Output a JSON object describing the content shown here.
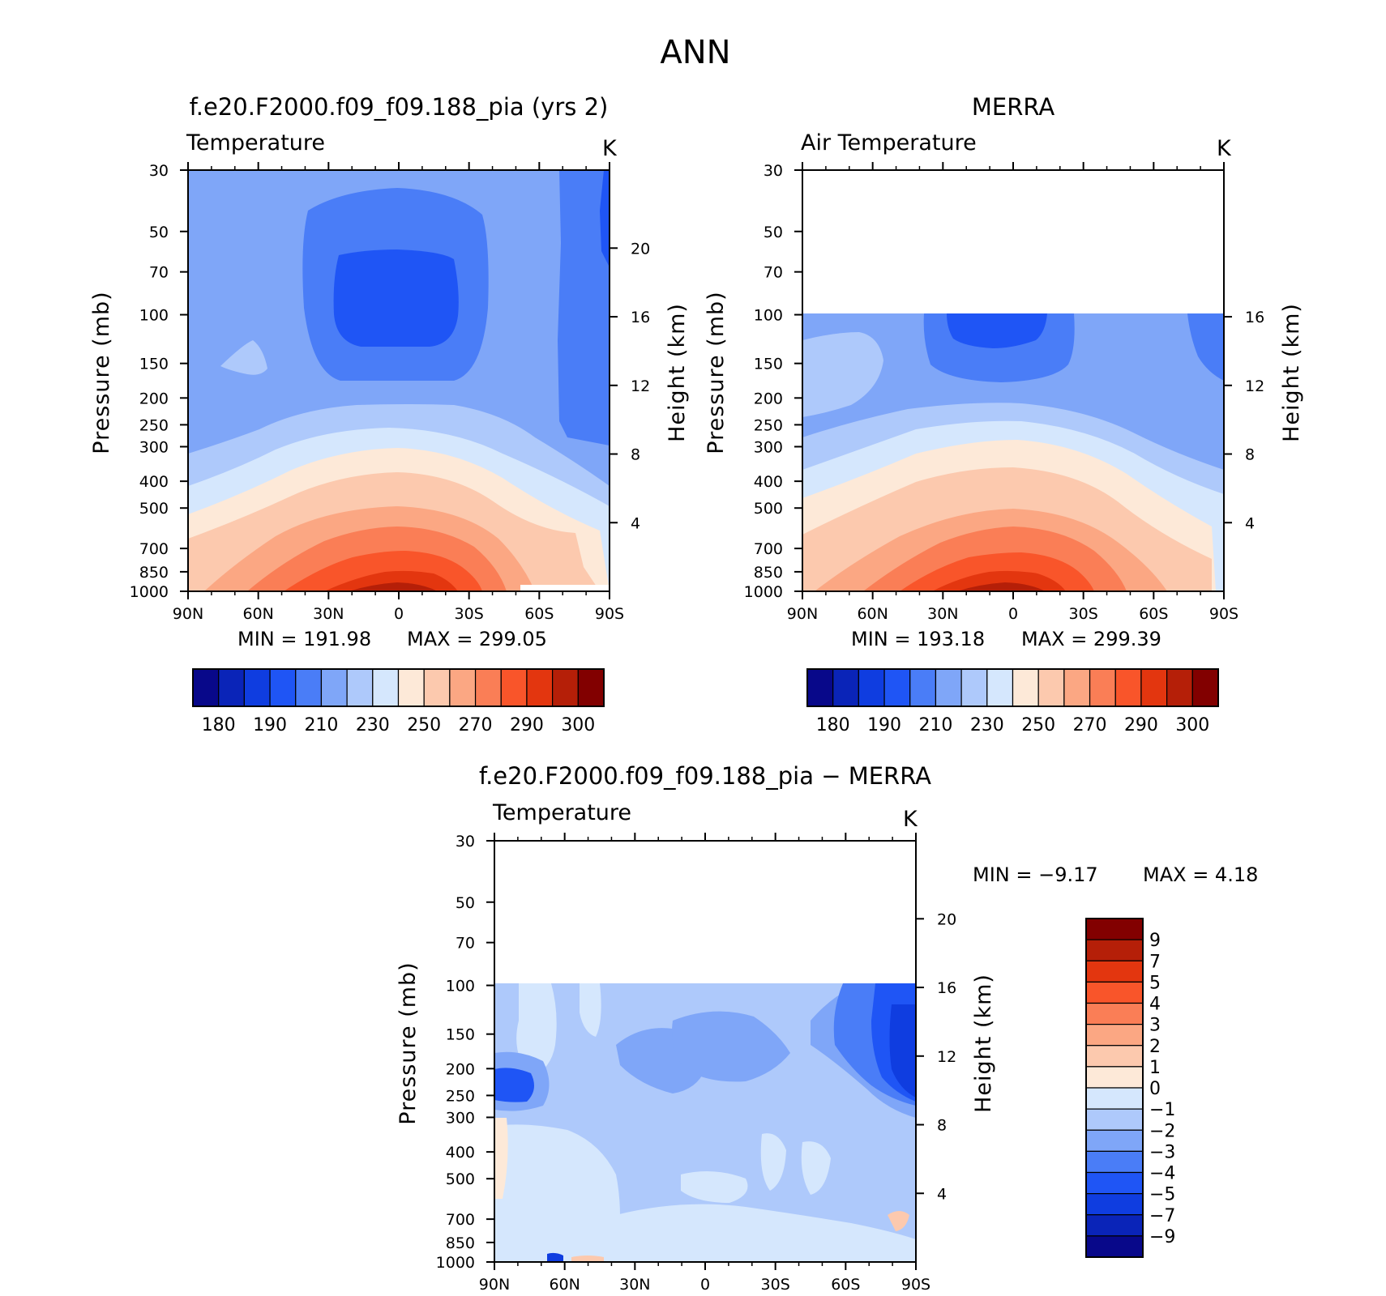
{
  "figure": {
    "title": "ANN"
  },
  "palette": {
    "full_colors": [
      "#08088a",
      "#0a24b8",
      "#0f3de0",
      "#1f55f5",
      "#4a7df7",
      "#7fa6f8",
      "#aec9fb",
      "#d5e7fd",
      "#fde9d8",
      "#fcc9ae",
      "#fba783",
      "#fa7e56",
      "#f9552a",
      "#e3360f",
      "#b51f08",
      "#820000"
    ],
    "full_labels": [
      "180",
      "190",
      "210",
      "230",
      "250",
      "270",
      "290",
      "300"
    ],
    "diff_colors_top_to_bottom": [
      "#820000",
      "#b51f08",
      "#e3360f",
      "#f9552a",
      "#fa7e56",
      "#fba783",
      "#fcc9ae",
      "#fde9d8",
      "#d5e7fd",
      "#aec9fb",
      "#7fa6f8",
      "#4a7df7",
      "#1f55f5",
      "#0f3de0",
      "#0a24b8",
      "#08088a"
    ],
    "diff_labels": [
      "9",
      "7",
      "5",
      "4",
      "3",
      "2",
      "1",
      "0",
      "−1",
      "−2",
      "−3",
      "−4",
      "−5",
      "−7",
      "−9"
    ]
  },
  "axes": {
    "lat_ticks": [
      "90N",
      "60N",
      "30N",
      "0",
      "30S",
      "60S",
      "90S"
    ],
    "pressure_ticks": [
      "30",
      "50",
      "70",
      "100",
      "150",
      "200",
      "250",
      "300",
      "400",
      "500",
      "700",
      "850",
      "1000"
    ],
    "pressure_label": "Pressure (mb)",
    "height_label": "Height (km)",
    "units": "K"
  },
  "chart_data": [
    {
      "type": "heatmap",
      "panel": "model",
      "title": "f.e20.F2000.f09_f09.188_pia (yrs 2)",
      "field_label": "Temperature",
      "units": "K",
      "x_ticks": [
        "90N",
        "60N",
        "30N",
        "0",
        "30S",
        "60S",
        "90S"
      ],
      "y_ticks_pressure": [
        30,
        50,
        70,
        100,
        150,
        200,
        250,
        300,
        400,
        500,
        700,
        850,
        1000
      ],
      "y_ticks_height": [
        20,
        16,
        12,
        8,
        4
      ],
      "ylim_pressure": [
        1000,
        30
      ],
      "xlabel": "",
      "ylabel": "Pressure (mb)",
      "ylabel_right": "Height (km)",
      "min_text": "MIN =  191.98",
      "max_text": "MAX =  299.05",
      "min": 191.98,
      "max": 299.05,
      "colorbar_labels": [
        "180",
        "190",
        "210",
        "230",
        "250",
        "270",
        "290",
        "300"
      ]
    },
    {
      "type": "heatmap",
      "panel": "obs",
      "title": "MERRA",
      "field_label": "Air Temperature",
      "units": "K",
      "x_ticks": [
        "90N",
        "60N",
        "30N",
        "0",
        "30S",
        "60S",
        "90S"
      ],
      "y_ticks_pressure": [
        30,
        50,
        70,
        100,
        150,
        200,
        250,
        300,
        400,
        500,
        700,
        850,
        1000
      ],
      "y_ticks_height": [
        16,
        12,
        8,
        4
      ],
      "ylim_pressure": [
        1000,
        30
      ],
      "data_top_pressure": 100,
      "xlabel": "",
      "ylabel": "Pressure (mb)",
      "ylabel_right": "Height (km)",
      "min_text": "MIN =  193.18",
      "max_text": "MAX =  299.39",
      "min": 193.18,
      "max": 299.39,
      "colorbar_labels": [
        "180",
        "190",
        "210",
        "230",
        "250",
        "270",
        "290",
        "300"
      ]
    },
    {
      "type": "heatmap",
      "panel": "difference",
      "title": "f.e20.F2000.f09_f09.188_pia − MERRA",
      "field_label": "Temperature",
      "units": "K",
      "x_ticks": [
        "90N",
        "60N",
        "30N",
        "0",
        "30S",
        "60S",
        "90S"
      ],
      "y_ticks_pressure": [
        30,
        50,
        70,
        100,
        150,
        200,
        250,
        300,
        400,
        500,
        700,
        850,
        1000
      ],
      "y_ticks_height": [
        20,
        16,
        12,
        8,
        4
      ],
      "ylim_pressure": [
        1000,
        30
      ],
      "data_top_pressure": 100,
      "xlabel": "",
      "ylabel": "Pressure (mb)",
      "ylabel_right": "Height (km)",
      "min_text": "MIN =    −9.17",
      "max_text": "MAX =     4.18",
      "min": -9.17,
      "max": 4.18,
      "colorbar_labels": [
        "9",
        "7",
        "5",
        "4",
        "3",
        "2",
        "1",
        "0",
        "−1",
        "−2",
        "−3",
        "−4",
        "−5",
        "−7",
        "−9"
      ]
    }
  ]
}
